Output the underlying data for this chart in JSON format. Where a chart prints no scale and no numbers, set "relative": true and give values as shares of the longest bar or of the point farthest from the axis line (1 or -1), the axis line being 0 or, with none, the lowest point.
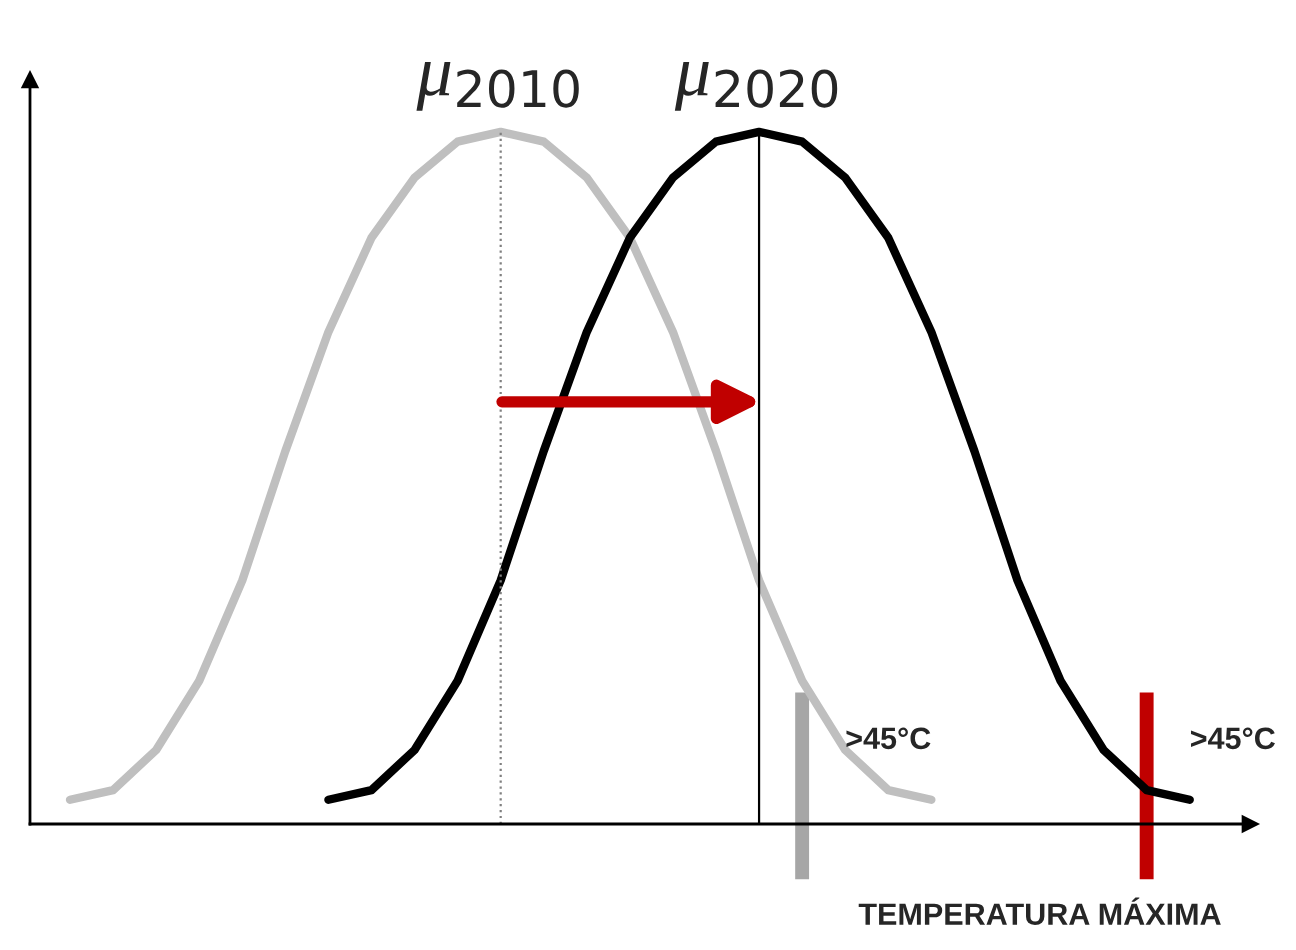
{
  "chart_data": {
    "type": "line",
    "relative": true,
    "grid": false,
    "marker": "none",
    "line_style": "solid",
    "categories": [
      null,
      null,
      null,
      null,
      null,
      null,
      null,
      null,
      null,
      null,
      null,
      null,
      null,
      null,
      null,
      null,
      null,
      null,
      null,
      null,
      null,
      null,
      null,
      null,
      null,
      null,
      null
    ],
    "series": [
      {
        "color": "#bfbfbf",
        "values": [
          0.035,
          0.049,
          0.107,
          0.207,
          0.352,
          0.539,
          0.711,
          0.847,
          0.934,
          0.986,
          1,
          0.986,
          0.934,
          0.847,
          0.711,
          0.539,
          0.352,
          0.207,
          0.107,
          0.049,
          0.035,
          null,
          null,
          null,
          null,
          null,
          null
        ]
      },
      {
        "color": "#000000",
        "values": [
          null,
          null,
          null,
          null,
          null,
          null,
          0.035,
          0.049,
          0.107,
          0.207,
          0.352,
          0.539,
          0.711,
          0.847,
          0.934,
          0.986,
          1,
          0.986,
          0.934,
          0.847,
          0.711,
          0.539,
          0.352,
          0.207,
          0.107,
          0.049,
          0.035
        ]
      }
    ],
    "annotations": [
      "μ$_{2010}$",
      "μ$_{2020}$",
      ">45°C",
      ">45°C",
      "TEMPERATURA MÁXIMA"
    ]
  }
}
